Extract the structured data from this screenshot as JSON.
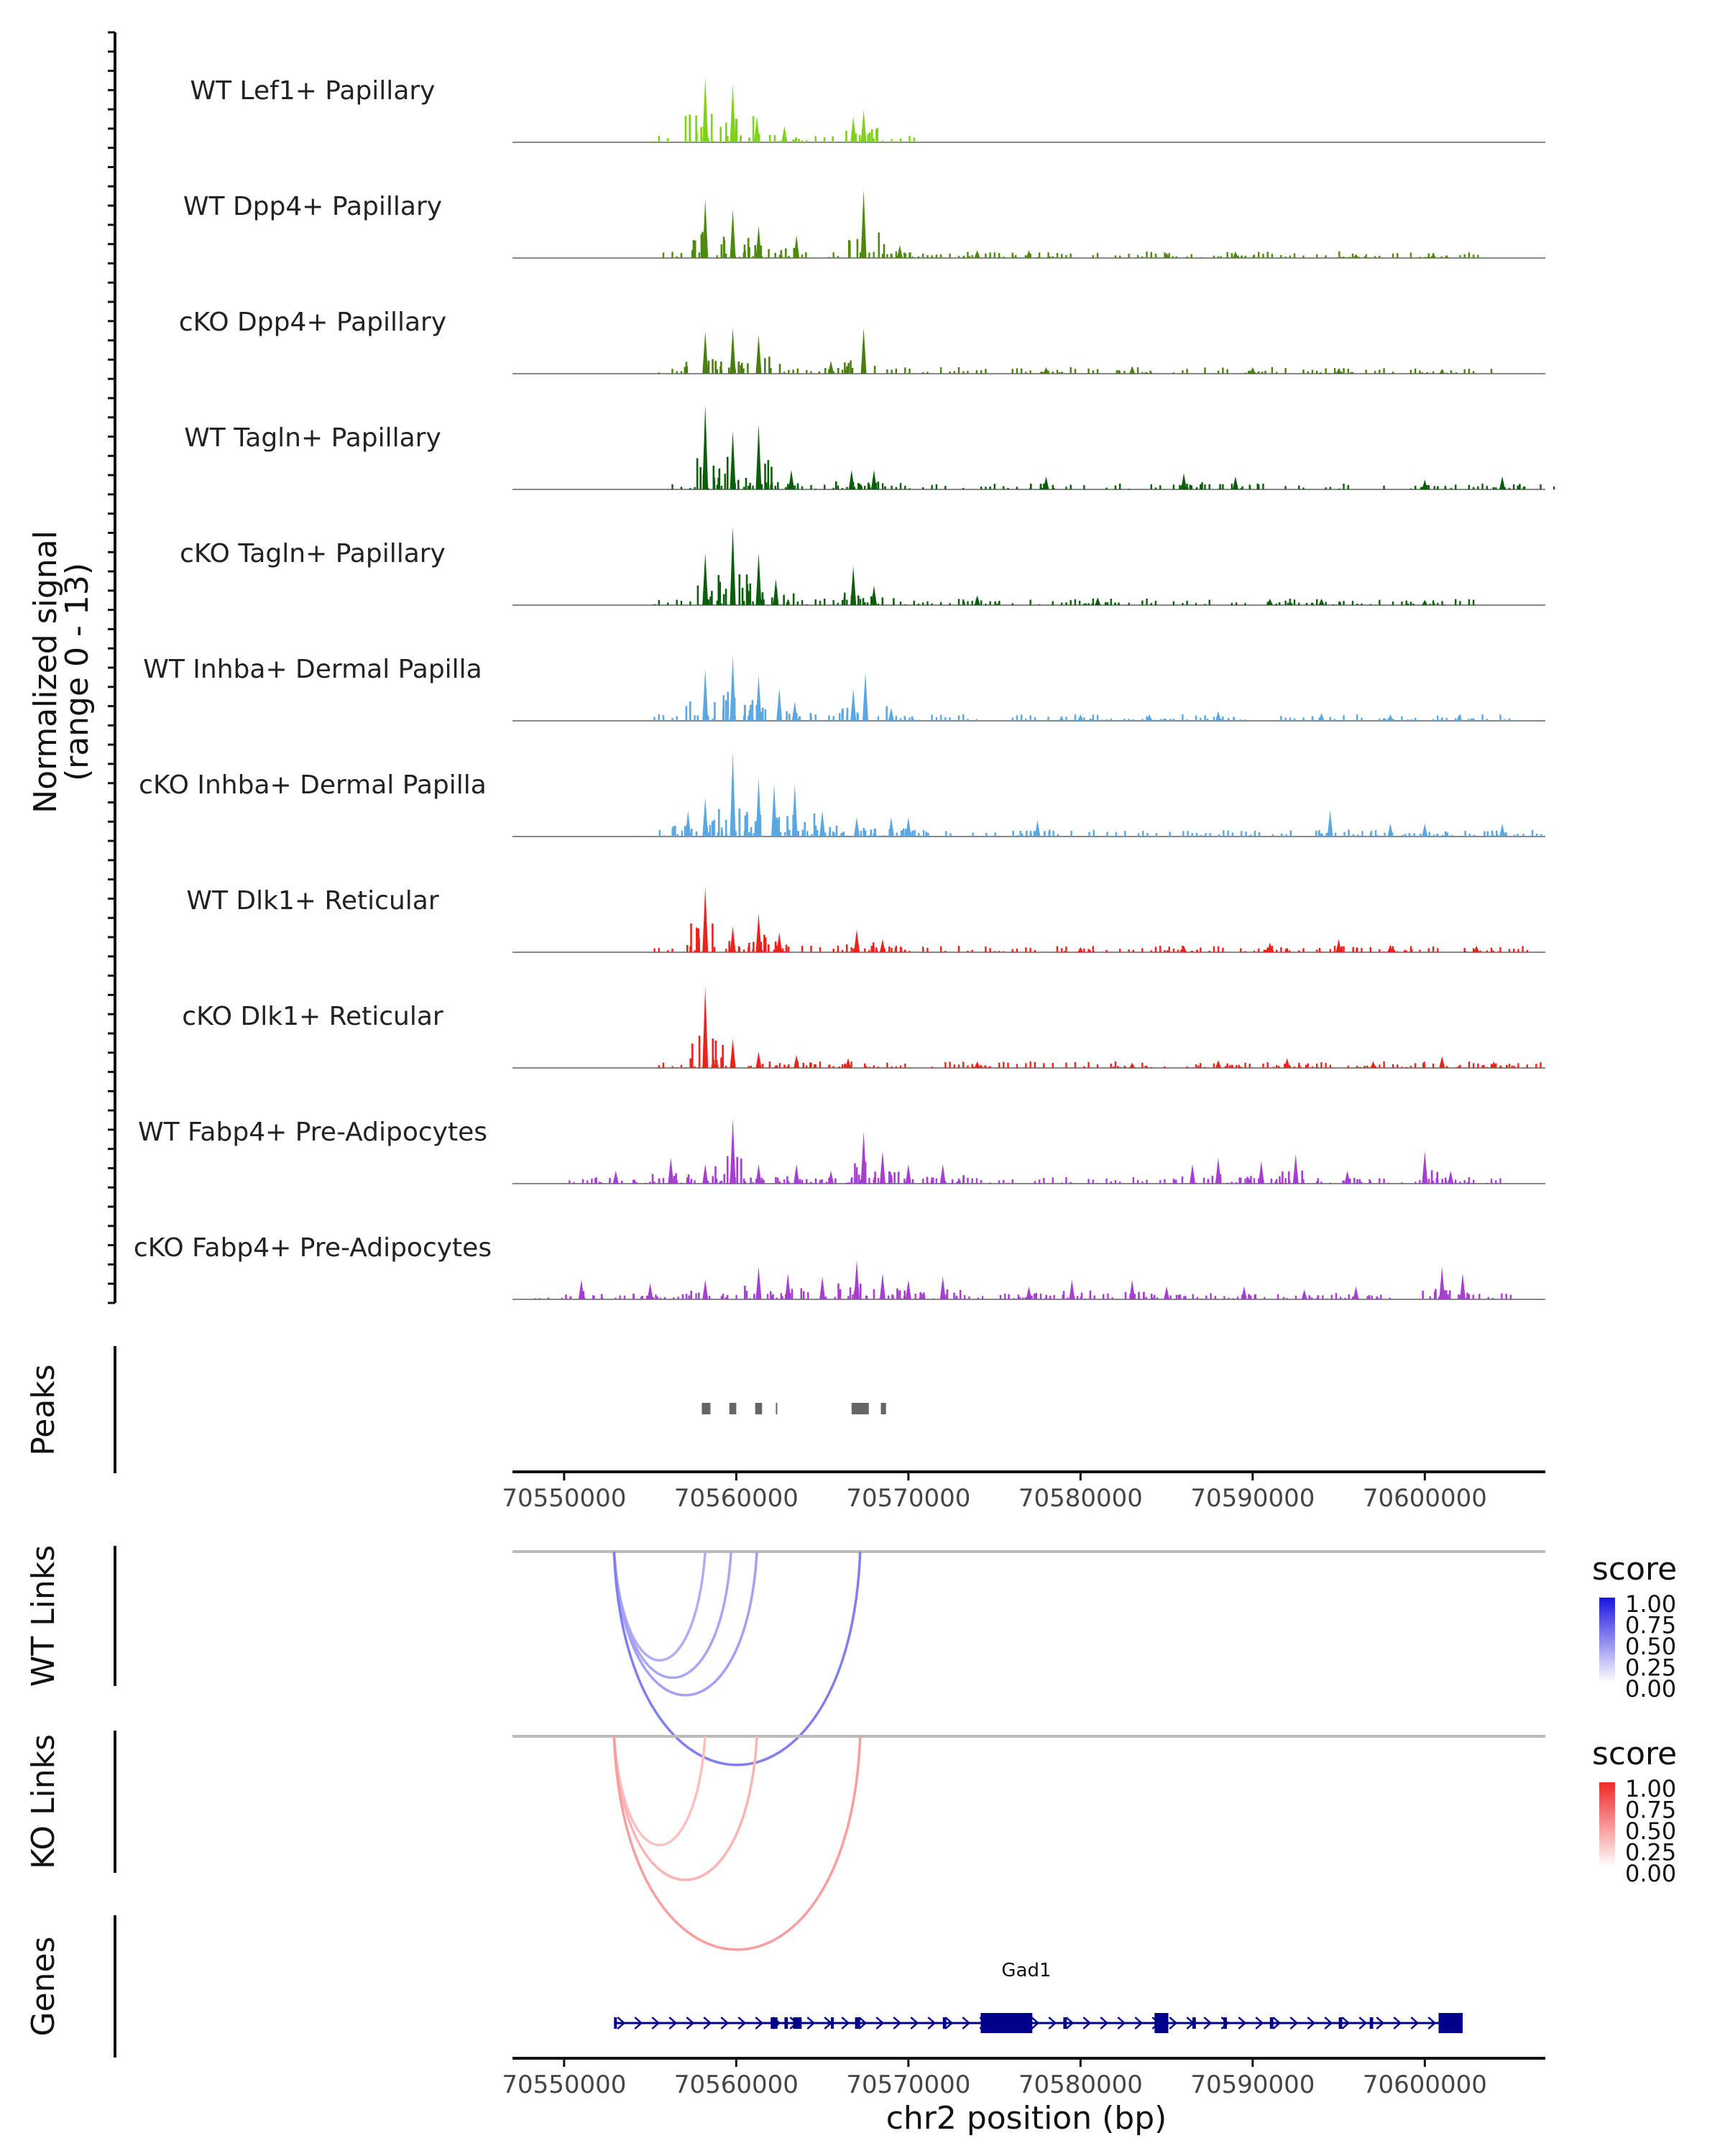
{
  "chart_data": [
    {
      "type": "area",
      "title": "",
      "ylabel": "Normalized signal",
      "ylabel_range": "(range 0 - 13)",
      "ylim": [
        0,
        13
      ],
      "xlim": [
        70547000,
        70607000
      ],
      "tracks": [
        {
          "label": "WT Lef1+ Papillary",
          "color": "#7FD11B",
          "peaks": [
            [
              70558200,
              10
            ],
            [
              70559800,
              9
            ],
            [
              70561200,
              4
            ],
            [
              70562800,
              2.5
            ],
            [
              70566800,
              4
            ],
            [
              70567400,
              5
            ]
          ]
        },
        {
          "label": "WT Dpp4+ Papillary",
          "color": "#4E8A11",
          "peaks": [
            [
              70558200,
              9
            ],
            [
              70559800,
              7.5
            ],
            [
              70561300,
              5
            ],
            [
              70563500,
              3.5
            ],
            [
              70567400,
              10.5
            ],
            [
              70569500,
              2
            ],
            [
              70574000,
              1.2
            ],
            [
              70577000,
              1.2
            ],
            [
              70585000,
              0.8
            ],
            [
              70589000,
              1
            ],
            [
              70596000,
              0.6
            ],
            [
              70600500,
              0.7
            ]
          ]
        },
        {
          "label": "cKO Dpp4+ Papillary",
          "color": "#4A7E0F",
          "peaks": [
            [
              70558200,
              6.5
            ],
            [
              70559800,
              7
            ],
            [
              70561300,
              6
            ],
            [
              70567400,
              7
            ],
            [
              70565500,
              2
            ],
            [
              70578000,
              1
            ],
            [
              70583000,
              1.2
            ],
            [
              70590000,
              1
            ],
            [
              70595000,
              0.8
            ],
            [
              70601000,
              0.7
            ]
          ]
        },
        {
          "label": "WT Tagln+ Papillary",
          "color": "#0C5E0C",
          "peaks": [
            [
              70558200,
              13
            ],
            [
              70559800,
              9
            ],
            [
              70561300,
              10
            ],
            [
              70563200,
              3
            ],
            [
              70566700,
              3
            ],
            [
              70568000,
              3
            ],
            [
              70578000,
              2
            ],
            [
              70586000,
              2.5
            ],
            [
              70589000,
              2
            ],
            [
              70600000,
              1.5
            ],
            [
              70604500,
              2
            ]
          ]
        },
        {
          "label": "cKO Tagln+ Papillary",
          "color": "#0C5E0C",
          "peaks": [
            [
              70558200,
              8
            ],
            [
              70559800,
              12
            ],
            [
              70561300,
              8
            ],
            [
              70562300,
              4
            ],
            [
              70566800,
              6
            ],
            [
              70568000,
              3
            ],
            [
              70574000,
              1.5
            ],
            [
              70581000,
              1.2
            ],
            [
              70591000,
              1
            ],
            [
              70594000,
              1
            ],
            [
              70600000,
              0.8
            ]
          ]
        },
        {
          "label": "WT Inhba+ Dermal Papilla",
          "color": "#5BA7E2",
          "peaks": [
            [
              70558200,
              8
            ],
            [
              70559800,
              10
            ],
            [
              70561300,
              7
            ],
            [
              70562500,
              5
            ],
            [
              70563400,
              3
            ],
            [
              70566800,
              5
            ],
            [
              70567500,
              7.5
            ],
            [
              70569000,
              2
            ],
            [
              70580000,
              1
            ],
            [
              70584000,
              1
            ],
            [
              70588000,
              1.5
            ],
            [
              70594000,
              1.2
            ],
            [
              70598000,
              1
            ],
            [
              70602000,
              1
            ]
          ]
        },
        {
          "label": "cKO Inhba+ Dermal Papilla",
          "color": "#5BA7E2",
          "peaks": [
            [
              70557200,
              4
            ],
            [
              70558200,
              6
            ],
            [
              70559800,
              13
            ],
            [
              70561300,
              9
            ],
            [
              70562200,
              8
            ],
            [
              70563400,
              8
            ],
            [
              70565000,
              4
            ],
            [
              70567000,
              3
            ],
            [
              70569000,
              3
            ],
            [
              70570000,
              3
            ],
            [
              70577500,
              2.5
            ],
            [
              70594500,
              4
            ],
            [
              70598000,
              2
            ],
            [
              70600000,
              2
            ],
            [
              70604500,
              2
            ]
          ]
        },
        {
          "label": "WT Dlk1+ Reticular",
          "color": "#E8251D",
          "peaks": [
            [
              70558200,
              10
            ],
            [
              70559800,
              4
            ],
            [
              70561300,
              6
            ],
            [
              70562500,
              3
            ],
            [
              70567000,
              3.5
            ],
            [
              70568500,
              2
            ],
            [
              70580000,
              0.8
            ],
            [
              70586000,
              1
            ],
            [
              70591000,
              1.5
            ],
            [
              70595000,
              2
            ],
            [
              70598000,
              1.2
            ],
            [
              70603000,
              1
            ]
          ]
        },
        {
          "label": "cKO Dlk1+ Reticular",
          "color": "#E8251D",
          "peaks": [
            [
              70558200,
              12.5
            ],
            [
              70559800,
              4.5
            ],
            [
              70561300,
              2.5
            ],
            [
              70563500,
              2
            ],
            [
              70566500,
              1.5
            ],
            [
              70574000,
              1
            ],
            [
              70583000,
              0.8
            ],
            [
              70588000,
              1.2
            ],
            [
              70592000,
              1.5
            ],
            [
              70597000,
              1
            ],
            [
              70601000,
              1.8
            ],
            [
              70604000,
              1
            ]
          ]
        },
        {
          "label": "WT Fabp4+ Pre-Adipocytes",
          "color": "#A63FD0",
          "peaks": [
            [
              70553000,
              2
            ],
            [
              70556200,
              4
            ],
            [
              70558200,
              3
            ],
            [
              70559800,
              10
            ],
            [
              70561300,
              3
            ],
            [
              70563500,
              3
            ],
            [
              70565500,
              2
            ],
            [
              70567400,
              8
            ],
            [
              70568500,
              5
            ],
            [
              70570000,
              3
            ],
            [
              70572000,
              3
            ],
            [
              70586500,
              3
            ],
            [
              70588000,
              4
            ],
            [
              70590500,
              3.5
            ],
            [
              70592500,
              4.5
            ],
            [
              70595500,
              2
            ],
            [
              70600000,
              5
            ],
            [
              70601500,
              2
            ]
          ]
        },
        {
          "label": "cKO Fabp4+ Pre-Adipocytes",
          "color": "#A63FD0",
          "peaks": [
            [
              70551000,
              3
            ],
            [
              70555000,
              2.5
            ],
            [
              70558200,
              3
            ],
            [
              70561300,
              5
            ],
            [
              70563000,
              4
            ],
            [
              70565000,
              3.5
            ],
            [
              70567000,
              6
            ],
            [
              70568500,
              4
            ],
            [
              70570000,
              3
            ],
            [
              70572000,
              3.5
            ],
            [
              70577000,
              2
            ],
            [
              70579500,
              3
            ],
            [
              70583000,
              3
            ],
            [
              70585000,
              2
            ],
            [
              70589500,
              2
            ],
            [
              70593000,
              1.5
            ],
            [
              70596000,
              2
            ],
            [
              70601000,
              5
            ],
            [
              70602200,
              4
            ]
          ]
        }
      ]
    },
    {
      "type": "ranges",
      "ylabel": "Peaks",
      "color": "#666666",
      "peaks": [
        [
          70558000,
          70558500
        ],
        [
          70559600,
          70560000
        ],
        [
          70561100,
          70561500
        ],
        [
          70562300,
          70562350
        ],
        [
          70566700,
          70567700
        ],
        [
          70568400,
          70568700
        ]
      ],
      "xlabel": "",
      "xticks": [
        70550000,
        70560000,
        70570000,
        70580000,
        70590000,
        70600000
      ],
      "xtick_labels": [
        "70550000",
        "70560000",
        "70570000",
        "70580000",
        "70590000",
        "70600000"
      ]
    },
    {
      "type": "arcs",
      "ylabel": "WT Links",
      "anchor": 70552900,
      "links": [
        [
          70558200,
          0.35
        ],
        [
          70559700,
          0.38
        ],
        [
          70561200,
          0.4
        ],
        [
          70567200,
          0.55
        ]
      ],
      "legend": {
        "title": "score",
        "ticks": [
          "1.00",
          "0.75",
          "0.50",
          "0.25",
          "0.00"
        ],
        "low": "#ffffff",
        "high": "#1a14e0",
        "position": "right"
      }
    },
    {
      "type": "arcs",
      "ylabel": "KO Links",
      "anchor": 70552900,
      "links": [
        [
          70558200,
          0.3
        ],
        [
          70561200,
          0.35
        ],
        [
          70567200,
          0.45
        ]
      ],
      "legend": {
        "title": "score",
        "ticks": [
          "1.00",
          "0.75",
          "0.50",
          "0.25",
          "0.00"
        ],
        "low": "#ffffff",
        "high": "#f02828",
        "position": "right"
      }
    },
    {
      "type": "gene",
      "ylabel": "Genes",
      "gene_name": "Gad1",
      "color": "#00008B",
      "gene_start": 70552900,
      "gene_end": 70602200,
      "exons": [
        [
          70552900,
          70553050
        ],
        [
          70562000,
          70562400
        ],
        [
          70562800,
          70563000
        ],
        [
          70563300,
          70563800
        ],
        [
          70565500,
          70565650
        ],
        [
          70566900,
          70567200
        ],
        [
          70572000,
          70572200
        ],
        [
          70574200,
          70577200
        ],
        [
          70579000,
          70579200
        ],
        [
          70584300,
          70585100
        ],
        [
          70586500,
          70586700
        ],
        [
          70588300,
          70588500
        ],
        [
          70591000,
          70591200
        ],
        [
          70595000,
          70595200
        ],
        [
          70596800,
          70597000
        ],
        [
          70600800,
          70602200
        ]
      ],
      "xlabel": "chr2 position (bp)",
      "xticks": [
        70550000,
        70560000,
        70570000,
        70580000,
        70590000,
        70600000
      ],
      "xtick_labels": [
        "70550000",
        "70560000",
        "70570000",
        "70580000",
        "70590000",
        "70600000"
      ]
    }
  ]
}
